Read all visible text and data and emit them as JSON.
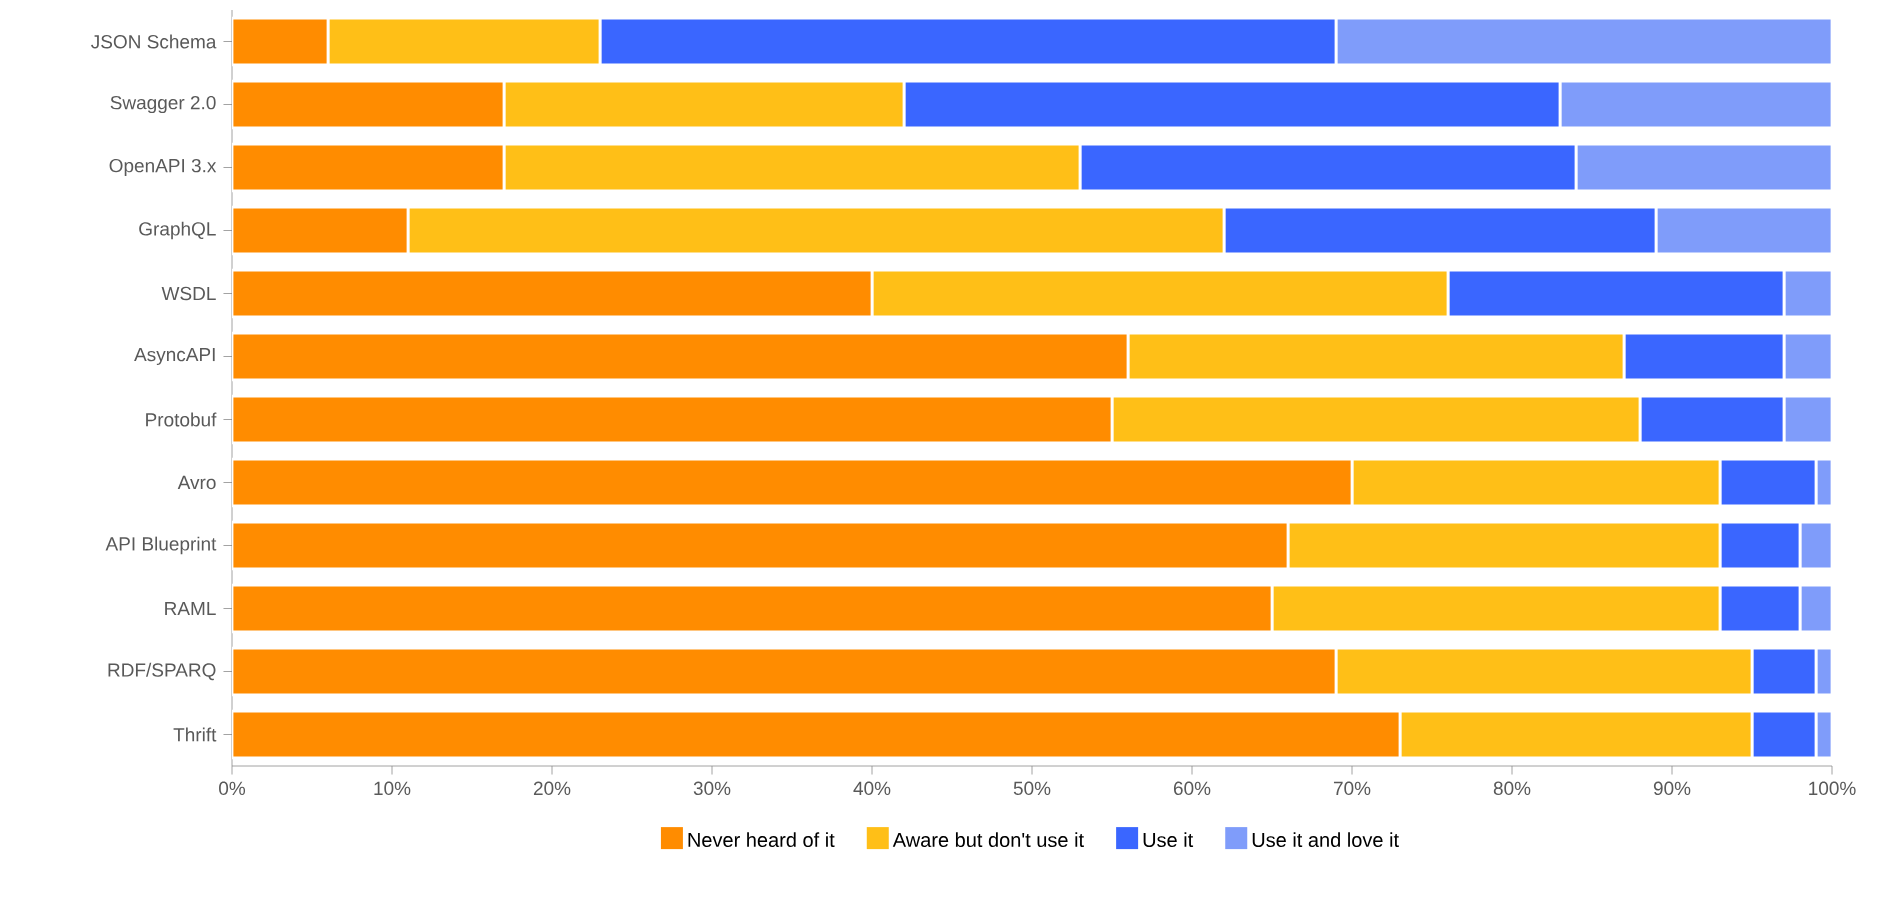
{
  "chart_data": {
    "type": "bar",
    "orientation": "horizontal",
    "stacked": true,
    "categories": [
      "JSON Schema",
      "Swagger 2.0",
      "OpenAPI 3.x",
      "GraphQL",
      "WSDL",
      "AsyncAPI",
      "Protobuf",
      "Avro",
      "API Blueprint",
      "RAML",
      "RDF/SPARQ",
      "Thrift"
    ],
    "series": [
      {
        "name": "Never heard of it",
        "color": "#ff8c00",
        "values": [
          6,
          17,
          17,
          11,
          40,
          56,
          55,
          70,
          66,
          65,
          69,
          73
        ]
      },
      {
        "name": "Aware but don't use it",
        "color": "#ffbf17",
        "values": [
          17,
          25,
          36,
          51,
          36,
          31,
          33,
          23,
          27,
          28,
          26,
          22
        ]
      },
      {
        "name": "Use it",
        "color": "#3a66ff",
        "values": [
          46,
          41,
          31,
          27,
          21,
          10,
          9,
          6,
          5,
          5,
          4,
          4
        ]
      },
      {
        "name": "Use it and love it",
        "color": "#7f9cfa",
        "values": [
          31,
          17,
          16,
          11,
          3,
          3,
          3,
          1,
          2,
          2,
          1,
          1
        ]
      }
    ],
    "xlim": [
      0,
      100
    ],
    "xticks": [
      {
        "value": 0,
        "label": "0%"
      },
      {
        "value": 10,
        "label": "10%"
      },
      {
        "value": 20,
        "label": "20%"
      },
      {
        "value": 30,
        "label": "30%"
      },
      {
        "value": 40,
        "label": "40%"
      },
      {
        "value": 50,
        "label": "50%"
      },
      {
        "value": 60,
        "label": "60%"
      },
      {
        "value": 70,
        "label": "70%"
      },
      {
        "value": 80,
        "label": "80%"
      },
      {
        "value": 90,
        "label": "90%"
      },
      {
        "value": 100,
        "label": "100%"
      }
    ],
    "legend": "bottom",
    "grid": false
  }
}
